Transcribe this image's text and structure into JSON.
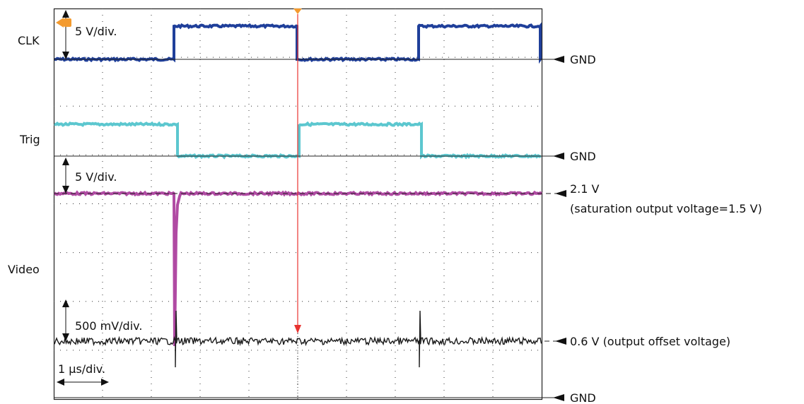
{
  "channels": {
    "clk": {
      "label": "CLK",
      "scale": "5 V/div.",
      "color": "#1f3f9a"
    },
    "trig": {
      "label": "Trig",
      "color": "#5cc7cf"
    },
    "video": {
      "label": "Video",
      "scale": "5 V/div.",
      "color": "#b04aa3"
    },
    "video_zoom": {
      "scale": "500 mV/div.",
      "color": "#1a1a1a"
    }
  },
  "timebase": {
    "scale": "1 µs/div."
  },
  "annotations": {
    "gnd_clk": "GND",
    "gnd_trig": "GND",
    "gnd_bottom": "GND",
    "sat_level": "2.1 V",
    "sat_note": "(saturation output voltage=1.5 V)",
    "offset_level": "0.6 V (output offset voltage)"
  },
  "colors": {
    "grid": "#333333",
    "trigger_marker": "#f39a2e",
    "marker_arrow": "#e8322f"
  }
}
